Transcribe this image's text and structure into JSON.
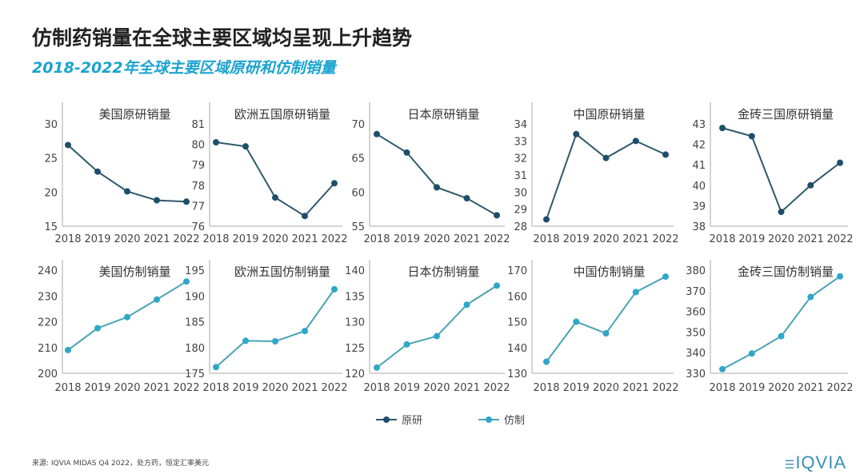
{
  "title": "仿制药销量在全球主要区域均呈现上升趋势",
  "subtitle": "2018-2022年全球主要区域原研和仿制销量",
  "colors": {
    "original": "#1f4e6b",
    "generic": "#2ea7c8",
    "original_line": "#2f5a6a",
    "generic_line": "#4aa4b3",
    "subtitle": "#1aa3cf"
  },
  "legend": [
    {
      "label": "原研"
    },
    {
      "label": "仿制"
    }
  ],
  "footer": "来源: IQVIA MIDAS Q4 2022，处方药，恒定汇率美元",
  "logo": "IQVIA",
  "chart_data": [
    {
      "type": "line",
      "title": "美国原研销量",
      "series_type": "原研",
      "categories": [
        "2018",
        "2019",
        "2020",
        "2021",
        "2022"
      ],
      "values": [
        26.9,
        23.0,
        20.1,
        18.8,
        18.6
      ],
      "ylim": [
        15,
        30
      ],
      "yticks": [
        15,
        20,
        25,
        30
      ]
    },
    {
      "type": "line",
      "title": "欧洲五国原研销量",
      "series_type": "原研",
      "categories": [
        "2018",
        "2019",
        "2020",
        "2021",
        "2022"
      ],
      "values": [
        80.1,
        79.9,
        77.4,
        76.5,
        78.1
      ],
      "ylim": [
        76,
        81
      ],
      "yticks": [
        76,
        77,
        78,
        79,
        80,
        81
      ]
    },
    {
      "type": "line",
      "title": "日本原研销量",
      "series_type": "原研",
      "categories": [
        "2018",
        "2019",
        "2020",
        "2021",
        "2022"
      ],
      "values": [
        68.5,
        65.8,
        60.7,
        59.1,
        56.6
      ],
      "ylim": [
        55,
        70
      ],
      "yticks": [
        55,
        60,
        65,
        70
      ]
    },
    {
      "type": "line",
      "title": "中国原研销量",
      "series_type": "原研",
      "categories": [
        "2018",
        "2019",
        "2020",
        "2021",
        "2022"
      ],
      "values": [
        28.4,
        33.4,
        32.0,
        33.0,
        32.2
      ],
      "ylim": [
        28,
        34
      ],
      "yticks": [
        28,
        29,
        30,
        31,
        32,
        33,
        34
      ]
    },
    {
      "type": "line",
      "title": "金砖三国原研销量",
      "series_type": "原研",
      "categories": [
        "2018",
        "2019",
        "2020",
        "2021",
        "2022"
      ],
      "values": [
        42.8,
        42.4,
        38.7,
        40.0,
        41.1
      ],
      "ylim": [
        38,
        43
      ],
      "yticks": [
        38,
        39,
        40,
        41,
        42,
        43
      ]
    },
    {
      "type": "line",
      "title": "美国仿制销量",
      "series_type": "仿制",
      "categories": [
        "2018",
        "2019",
        "2020",
        "2021",
        "2022"
      ],
      "values": [
        209.0,
        217.5,
        221.8,
        228.6,
        235.6
      ],
      "ylim": [
        200,
        240
      ],
      "yticks": [
        200,
        210,
        220,
        230,
        240
      ]
    },
    {
      "type": "line",
      "title": "欧洲五国仿制销量",
      "series_type": "仿制",
      "categories": [
        "2018",
        "2019",
        "2020",
        "2021",
        "2022"
      ],
      "values": [
        176.2,
        181.3,
        181.2,
        183.2,
        191.3
      ],
      "ylim": [
        175,
        195
      ],
      "yticks": [
        175,
        180,
        185,
        190,
        195
      ]
    },
    {
      "type": "line",
      "title": "日本仿制销量",
      "series_type": "仿制",
      "categories": [
        "2018",
        "2019",
        "2020",
        "2021",
        "2022"
      ],
      "values": [
        121.1,
        125.6,
        127.2,
        133.3,
        137.0
      ],
      "ylim": [
        120,
        140
      ],
      "yticks": [
        120,
        125,
        130,
        135,
        140
      ]
    },
    {
      "type": "line",
      "title": "中国仿制销量",
      "series_type": "仿制",
      "categories": [
        "2018",
        "2019",
        "2020",
        "2021",
        "2022"
      ],
      "values": [
        134.5,
        150.0,
        145.5,
        161.5,
        167.5
      ],
      "ylim": [
        130,
        170
      ],
      "yticks": [
        130,
        140,
        150,
        160,
        170
      ]
    },
    {
      "type": "line",
      "title": "金砖三国仿制销量",
      "series_type": "仿制",
      "categories": [
        "2018",
        "2019",
        "2020",
        "2021",
        "2022"
      ],
      "values": [
        332,
        339.6,
        348,
        367,
        377
      ],
      "ylim": [
        330,
        380
      ],
      "yticks": [
        330,
        340,
        350,
        360,
        370,
        380
      ]
    }
  ]
}
